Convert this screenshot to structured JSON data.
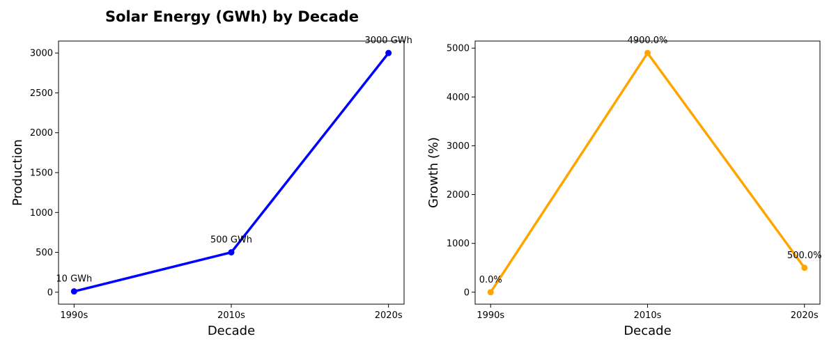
{
  "title": "Solar Energy (GWh) by Decade",
  "chart_data": [
    {
      "type": "line",
      "categories": [
        "1990s",
        "2010s",
        "2020s"
      ],
      "series": [
        {
          "values": [
            10,
            500,
            3000
          ],
          "color": "#0000ff"
        }
      ],
      "data_labels": [
        "10 GWh",
        "500 GWh",
        "3000 GWh"
      ],
      "xlabel": "Decade",
      "ylabel": "Production",
      "ylim": [
        -150,
        3150
      ],
      "yticks": [
        0,
        500,
        1000,
        1500,
        2000,
        2500,
        3000
      ],
      "grid": false
    },
    {
      "type": "line",
      "categories": [
        "1990s",
        "2010s",
        "2020s"
      ],
      "series": [
        {
          "values": [
            0,
            4900,
            500
          ],
          "color": "#ffa500"
        }
      ],
      "data_labels": [
        "0.0%",
        "4900.0%",
        "500.0%"
      ],
      "xlabel": "Decade",
      "ylabel": "Growth (%)",
      "ylim": [
        -245,
        5145
      ],
      "yticks": [
        0,
        1000,
        2000,
        3000,
        4000,
        5000
      ],
      "grid": false
    }
  ]
}
